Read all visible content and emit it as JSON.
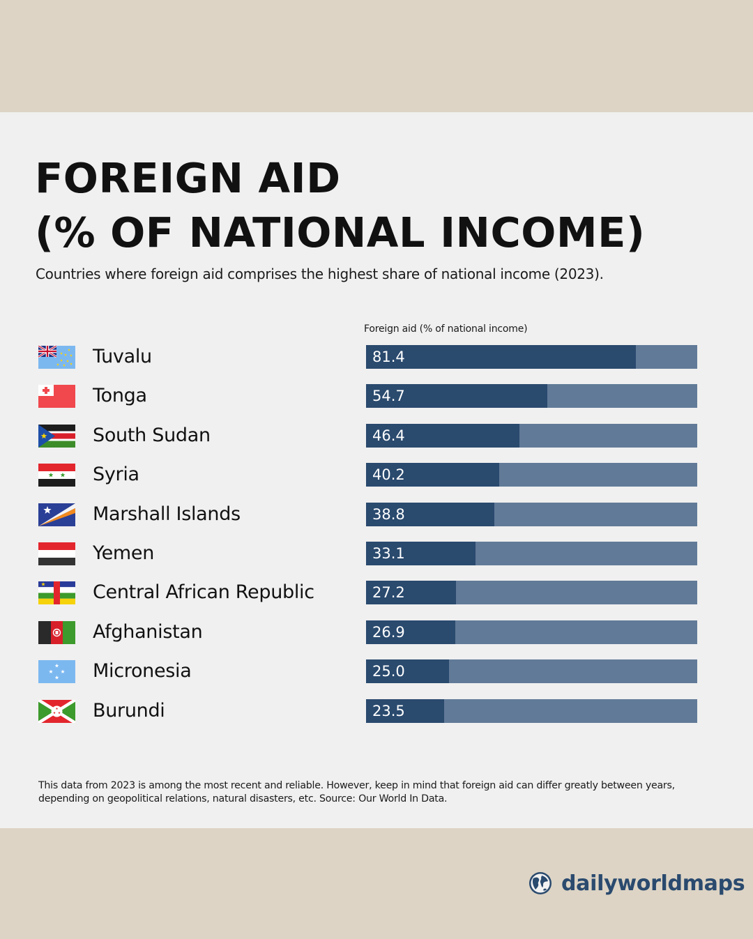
{
  "title_line1": "FOREIGN AID",
  "title_line2": "(% OF NATIONAL INCOME)",
  "subtitle": "Countries where foreign aid comprises the highest share of national income (2023).",
  "footnote": "This data from 2023 is among the most recent and reliable. However, keep in mind that foreign aid can differ greatly between years, depending on geopolitical relations, natural disasters, etc. Source: Our World In Data.",
  "brand": {
    "name": "dailyworldmaps",
    "icon": "globe-icon"
  },
  "colors": {
    "bar_value": "#2a4a6e",
    "bar_track": "#617a98",
    "panel": "#f0f0f0",
    "band": "#ddd4c5"
  },
  "chart_data": {
    "type": "bar",
    "orientation": "horizontal",
    "xlabel": "Foreign aid (% of national income)",
    "xlim": [
      0,
      100
    ],
    "grid": false,
    "legend": "none",
    "categories": [
      "Tuvalu",
      "Tonga",
      "South Sudan",
      "Syria",
      "Marshall Islands",
      "Yemen",
      "Central African Republic",
      "Afghanistan",
      "Micronesia",
      "Burundi"
    ],
    "values": [
      81.4,
      54.7,
      46.4,
      40.2,
      38.8,
      33.1,
      27.2,
      26.9,
      25.0,
      23.5
    ],
    "value_labels": [
      "81.4",
      "54.7",
      "46.4",
      "40.2",
      "38.8",
      "33.1",
      "27.2",
      "26.9",
      "25.0",
      "23.5"
    ],
    "flags": [
      "tuvalu-flag-icon",
      "tonga-flag-icon",
      "south-sudan-flag-icon",
      "syria-flag-icon",
      "marshall-islands-flag-icon",
      "yemen-flag-icon",
      "central-african-republic-flag-icon",
      "afghanistan-flag-icon",
      "micronesia-flag-icon",
      "burundi-flag-icon"
    ]
  }
}
